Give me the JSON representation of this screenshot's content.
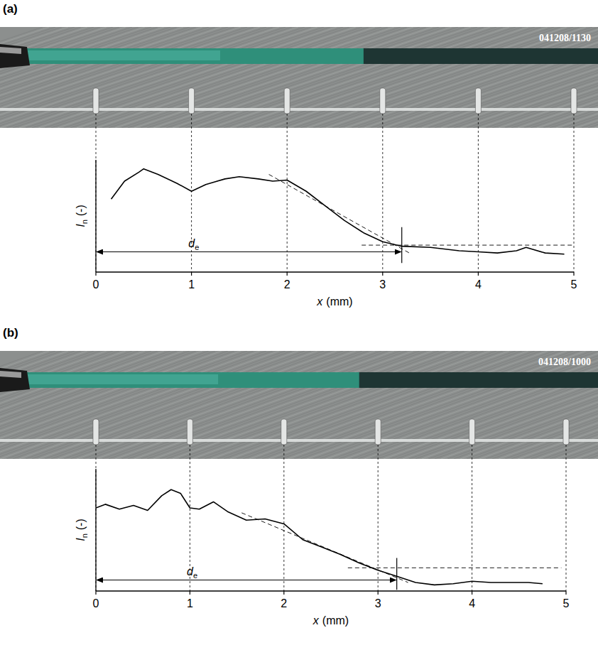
{
  "chart_data": [
    {
      "type": "line",
      "panel": "(a)",
      "photo_label": "041208/1130",
      "xlabel": {
        "symbol": "x",
        "unit": "(mm)"
      },
      "ylabel": {
        "symbol": "I",
        "sub": "n",
        "unit": "(-)"
      },
      "xlim": [
        0,
        5
      ],
      "xticks": [
        0,
        1,
        2,
        3,
        4,
        5
      ],
      "ylim": [
        0,
        1
      ],
      "yticks": [],
      "tick_labels": "x",
      "grid": false,
      "color": "#000000",
      "x": [
        0.16,
        0.3,
        0.45,
        0.5,
        0.65,
        0.85,
        1.0,
        1.15,
        1.35,
        1.5,
        1.7,
        1.85,
        2.0,
        2.2,
        2.4,
        2.6,
        2.8,
        3.0,
        3.2,
        3.5,
        3.8,
        4.0,
        4.2,
        4.4,
        4.5,
        4.7,
        4.9
      ],
      "values": [
        0.65,
        0.81,
        0.89,
        0.92,
        0.87,
        0.79,
        0.72,
        0.78,
        0.83,
        0.85,
        0.83,
        0.81,
        0.82,
        0.72,
        0.59,
        0.46,
        0.35,
        0.27,
        0.23,
        0.22,
        0.19,
        0.18,
        0.17,
        0.19,
        0.22,
        0.17,
        0.16
      ],
      "fit_lines": [
        {
          "x": [
            1.81,
            3.3
          ],
          "values": [
            0.87,
            0.16
          ],
          "line_style": "dashed"
        },
        {
          "x": [
            2.78,
            5
          ],
          "values": [
            0.24,
            0.24
          ],
          "line_style": "dashed"
        }
      ],
      "d_e": {
        "symbol": "d",
        "sub": "e",
        "value": 3.2,
        "y": 0.18,
        "marker_range": [
          0.08,
          0.4
        ]
      }
    },
    {
      "type": "line",
      "panel": "(b)",
      "photo_label": "041208/1000",
      "xlabel": {
        "symbol": "x",
        "unit": "(mm)"
      },
      "ylabel": {
        "symbol": "I",
        "sub": "n",
        "unit": "(-)"
      },
      "xlim": [
        0,
        5
      ],
      "xticks": [
        0,
        1,
        2,
        3,
        4,
        5
      ],
      "ylim": [
        0,
        1
      ],
      "yticks": [],
      "tick_labels": "x",
      "grid": false,
      "color": "#000000",
      "x": [
        0,
        0.1,
        0.25,
        0.4,
        0.55,
        0.7,
        0.8,
        0.9,
        1.0,
        1.1,
        1.25,
        1.4,
        1.6,
        1.8,
        2.0,
        2.2,
        2.4,
        2.6,
        2.8,
        3.0,
        3.2,
        3.4,
        3.6,
        3.8,
        4.0,
        4.2,
        4.4,
        4.6,
        4.75
      ],
      "values": [
        0.68,
        0.71,
        0.67,
        0.7,
        0.66,
        0.78,
        0.83,
        0.8,
        0.68,
        0.67,
        0.73,
        0.65,
        0.58,
        0.59,
        0.55,
        0.42,
        0.36,
        0.3,
        0.23,
        0.17,
        0.12,
        0.07,
        0.05,
        0.06,
        0.08,
        0.07,
        0.07,
        0.07,
        0.06
      ],
      "fit_lines": [
        {
          "x": [
            1.55,
            3.32
          ],
          "values": [
            0.64,
            0.07
          ],
          "line_style": "dashed"
        },
        {
          "x": [
            2.68,
            4.95
          ],
          "values": [
            0.19,
            0.19
          ],
          "line_style": "dashed"
        }
      ],
      "d_e": {
        "symbol": "d",
        "sub": "e",
        "value": 3.2,
        "y": 0.09,
        "marker_range": [
          0.01,
          0.27
        ]
      }
    }
  ]
}
